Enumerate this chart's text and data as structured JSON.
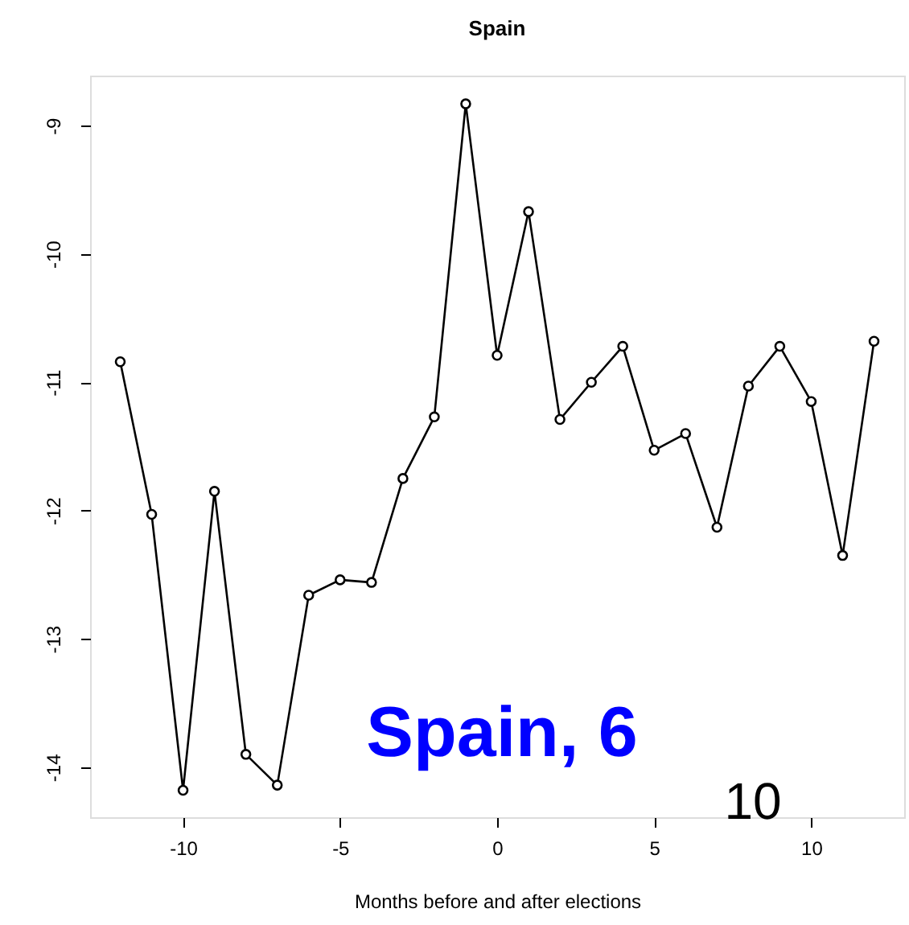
{
  "chart_data": {
    "type": "line",
    "title": "Spain",
    "xlabel": "Months before and after elections",
    "x": [
      -12,
      -11,
      -10,
      -9,
      -8,
      -7,
      -6,
      -5,
      -4,
      -3,
      -2,
      -1,
      0,
      1,
      2,
      3,
      4,
      5,
      6,
      7,
      8,
      9,
      10,
      11,
      12
    ],
    "series": [
      {
        "color": "#000000",
        "values": [
          -10.84,
          -12.03,
          -14.18,
          -11.85,
          -13.9,
          -14.14,
          -12.66,
          -12.54,
          -12.56,
          -11.75,
          -11.27,
          -8.83,
          -10.79,
          -9.67,
          -11.29,
          -11.0,
          -10.72,
          -11.53,
          -11.4,
          -12.13,
          -11.03,
          -10.72,
          -11.15,
          -12.35,
          -10.68
        ]
      }
    ],
    "xlim": [
      -12.96,
      12.96
    ],
    "xticks": [
      -10,
      -5,
      0,
      5,
      10
    ],
    "ylim": [
      -14.39,
      -8.61
    ],
    "yticks": [
      -14,
      -13,
      -12,
      -11,
      -10,
      -9
    ],
    "marker": "circle",
    "line_style": "solid",
    "grid": false,
    "annotations": [
      "Spain, 6",
      "10"
    ]
  }
}
